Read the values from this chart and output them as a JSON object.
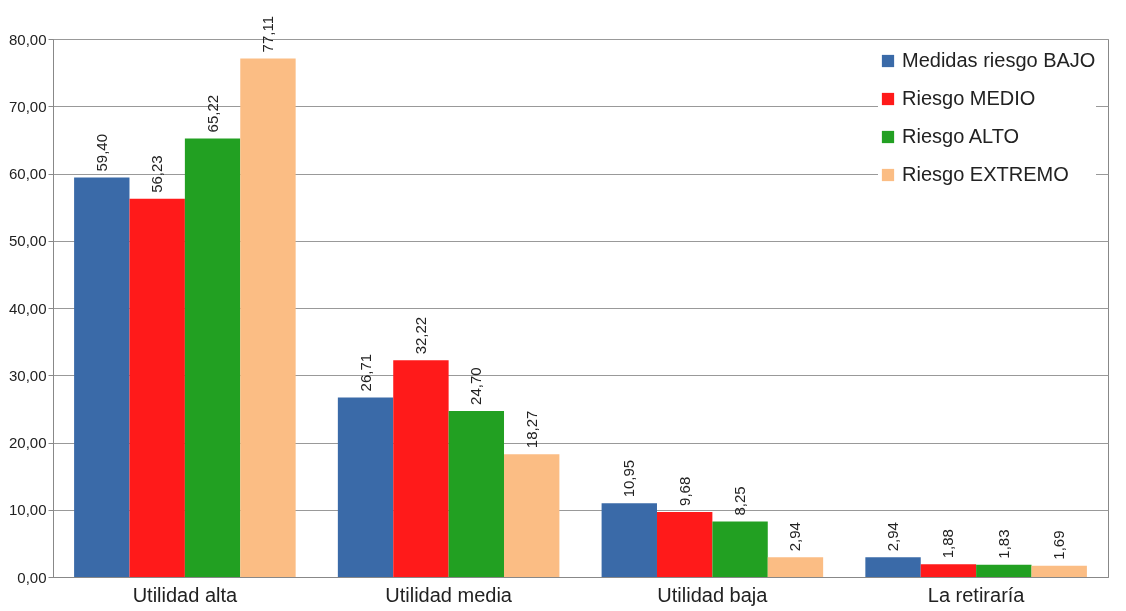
{
  "chart_data": {
    "type": "bar",
    "categories": [
      "Utilidad alta",
      "Utilidad media",
      "Utilidad baja",
      "La retiraría"
    ],
    "series": [
      {
        "name": "Medidas riesgo BAJO",
        "color": "#3a6aa8",
        "values": [
          59.4,
          26.71,
          10.95,
          2.94
        ],
        "value_labels": [
          "59,40",
          "26,71",
          "10,95",
          "2,94"
        ]
      },
      {
        "name": "Riesgo MEDIO",
        "color": "#ff1a1a",
        "values": [
          56.23,
          32.22,
          9.68,
          1.88
        ],
        "value_labels": [
          "56,23",
          "32,22",
          "9,68",
          "1,88"
        ]
      },
      {
        "name": "Riesgo ALTO",
        "color": "#22a022",
        "values": [
          65.22,
          24.7,
          8.25,
          1.83
        ],
        "value_labels": [
          "65,22",
          "24,70",
          "8,25",
          "1,83"
        ]
      },
      {
        "name": "Riesgo EXTREMO",
        "color": "#fbbd84",
        "values": [
          77.11,
          18.27,
          2.94,
          1.69
        ],
        "value_labels": [
          "77,11",
          "18,27",
          "2,94",
          "1,69"
        ]
      }
    ],
    "ylim": [
      0,
      80
    ],
    "yticks": [
      {
        "value": 0,
        "label": "0,00"
      },
      {
        "value": 10,
        "label": "10,00"
      },
      {
        "value": 20,
        "label": "20,00"
      },
      {
        "value": 30,
        "label": "30,00"
      },
      {
        "value": 40,
        "label": "40,00"
      },
      {
        "value": 50,
        "label": "50,00"
      },
      {
        "value": 60,
        "label": "60,00"
      },
      {
        "value": 70,
        "label": "70,00"
      },
      {
        "value": 80,
        "label": "80,00"
      }
    ],
    "grid": "y",
    "legend": "top right"
  }
}
